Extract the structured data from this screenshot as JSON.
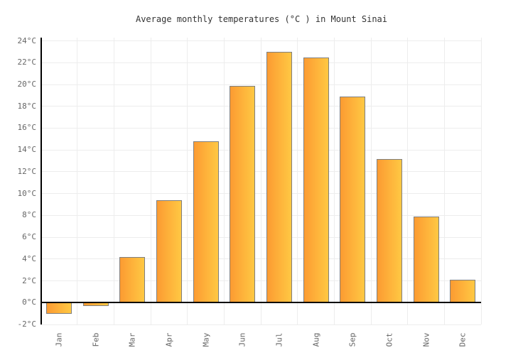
{
  "page": {
    "background": "#ffffff"
  },
  "chart_data": {
    "type": "bar",
    "title": "Average monthly temperatures (°C ) in Mount Sinai",
    "xlabel": "",
    "ylabel": "",
    "categories": [
      "Jan",
      "Feb",
      "Mar",
      "Apr",
      "May",
      "Jun",
      "Jul",
      "Aug",
      "Sep",
      "Oct",
      "Nov",
      "Dec"
    ],
    "values": [
      -1,
      -0.3,
      4.2,
      9.4,
      14.8,
      19.9,
      23,
      22.5,
      18.9,
      13.2,
      7.9,
      2.1
    ],
    "y_unit": "°C",
    "y_tick_min": -2,
    "y_tick_max": 24,
    "y_tick_step": 2,
    "ylim": [
      -2,
      24.3
    ],
    "grid": true,
    "legend_position": "none",
    "colors": {
      "bar_gradient_left": "#FC9B32",
      "bar_gradient_right": "#FFC843",
      "bar_border": "#7F7F7F",
      "axis_line": "#000000",
      "gridline": "#EDEDED",
      "tick_label": "#666666",
      "title": "#333333"
    }
  }
}
